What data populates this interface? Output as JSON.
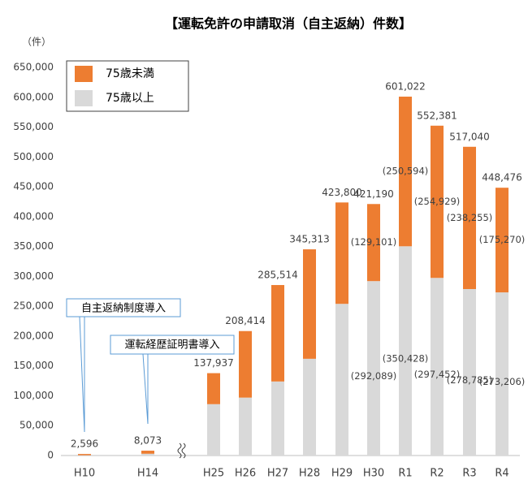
{
  "chart_data": {
    "type": "stacked_bar",
    "title": "【運転免許の申請取消（自主返納）件数】",
    "y_unit": "（件）",
    "categories": [
      "H10",
      "H14",
      "H25",
      "H26",
      "H27",
      "H28",
      "H29",
      "H30",
      "R1",
      "R2",
      "R3",
      "R4"
    ],
    "series": [
      {
        "name": "75歳以上",
        "color": "#d9d9d9",
        "values": [
          500,
          3000,
          86000,
          97000,
          124000,
          162000,
          254000,
          292089,
          350428,
          297452,
          278785,
          273206
        ],
        "value_labels": [
          null,
          null,
          null,
          null,
          null,
          null,
          null,
          "(292,089)",
          "(350,428)",
          "(297,452)",
          "(278,785)",
          "(273,206)"
        ]
      },
      {
        "name": "75歳未満",
        "color": "#ed7d31",
        "values": [
          2096,
          5073,
          51937,
          111414,
          161514,
          183313,
          169800,
          129101,
          250594,
          254929,
          238255,
          175270
        ],
        "value_labels": [
          null,
          null,
          null,
          null,
          null,
          null,
          null,
          "(129,101)",
          "(250,594)",
          "(254,929)",
          "(238,255)",
          "(175,270)"
        ]
      }
    ],
    "totals": [
      2596,
      8073,
      137937,
      208414,
      285514,
      345313,
      423800,
      421190,
      601022,
      552381,
      517040,
      448476
    ],
    "total_labels": [
      "2,596",
      "8,073",
      "137,937",
      "208,414",
      "285,514",
      "345,313",
      "423,800",
      "421,190",
      "601,022",
      "552,381",
      "517,040",
      "448,476"
    ],
    "ylim": [
      0,
      650000
    ],
    "yticks": [
      0,
      {
        "value": 50000,
        "label": "50,000"
      },
      {
        "value": 100000,
        "label": "100,000"
      },
      {
        "value": 150000,
        "label": "150,000"
      },
      {
        "value": 200000,
        "label": "200,000"
      },
      {
        "value": 250000,
        "label": "250,000"
      },
      {
        "value": 300000,
        "label": "300,000"
      },
      {
        "value": 350000,
        "label": "350,000"
      },
      {
        "value": 400000,
        "label": "400,000"
      },
      {
        "value": 450000,
        "label": "450,000"
      },
      {
        "value": 500000,
        "label": "500,000"
      },
      {
        "value": 550000,
        "label": "550,000"
      },
      {
        "value": 600000,
        "label": "600,000"
      },
      {
        "value": 650000,
        "label": "650,000"
      }
    ],
    "annotations": [
      "自主返納制度導入",
      "運転経歴証明書導入"
    ],
    "grid": false
  }
}
